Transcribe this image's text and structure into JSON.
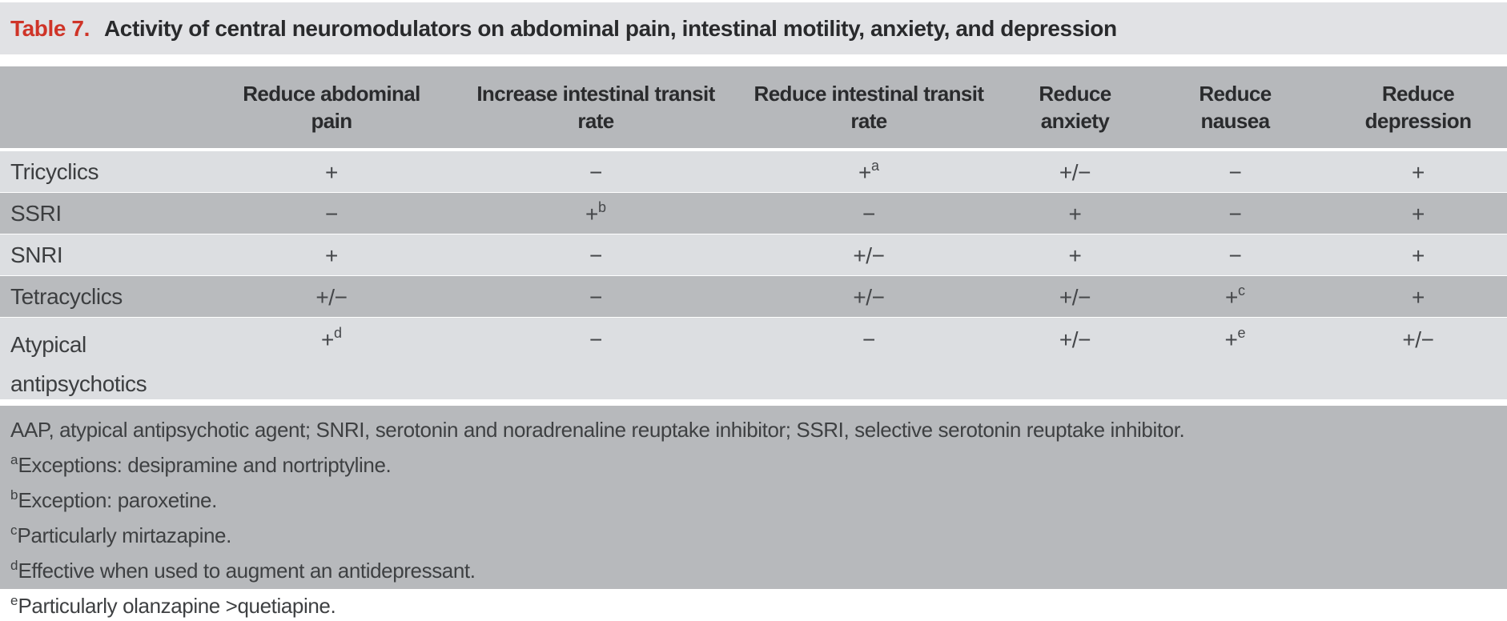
{
  "title": {
    "label": "Table 7.",
    "text": "Activity of central neuromodulators on abdominal pain, intestinal motility, anxiety, and depression"
  },
  "colors": {
    "accent_red": "#cf3428",
    "title_band": "#e1e2e5",
    "header_band": "#b6b8bb",
    "row_light": "#dcdee1",
    "row_dark": "#b9bbbe",
    "footnote_band": "#b7b9bc",
    "text_dark": "#2a2b2d"
  },
  "chart_data": {
    "type": "table",
    "title": "Activity of central neuromodulators on abdominal pain, intestinal motility, anxiety, and depression",
    "columns": [
      "",
      "Reduce abdominal pain",
      "Increase intestinal transit rate",
      "Reduce intestinal transit rate",
      "Reduce anxiety",
      "Reduce nausea",
      "Reduce depression"
    ],
    "rows": [
      [
        "Tricyclics",
        "+",
        "−",
        "+a",
        "+/−",
        "−",
        "+"
      ],
      [
        "SSRI",
        "−",
        "+b",
        "−",
        "+",
        "−",
        "+"
      ],
      [
        "SNRI",
        "+",
        "−",
        "+/−",
        "+",
        "−",
        "+"
      ],
      [
        "Tetracyclics",
        "+/−",
        "−",
        "+/−",
        "+/−",
        "+c",
        "+"
      ],
      [
        "Atypical antipsychotics",
        "+d",
        "−",
        "−",
        "+/−",
        "+e",
        "+/−"
      ]
    ]
  },
  "table": {
    "headers": [
      {
        "line1": "Reduce abdominal",
        "line2": "pain"
      },
      {
        "line1": "Increase intestinal transit",
        "line2": "rate"
      },
      {
        "line1": "Reduce intestinal transit",
        "line2": "rate"
      },
      {
        "line1": "Reduce",
        "line2": "anxiety"
      },
      {
        "line1": "Reduce",
        "line2": "nausea"
      },
      {
        "line1": "Reduce",
        "line2": "depression"
      }
    ],
    "rows": [
      {
        "label": "Tricyclics",
        "cells": [
          {
            "v": "+",
            "sup": ""
          },
          {
            "v": "−",
            "sup": ""
          },
          {
            "v": "+",
            "sup": "a"
          },
          {
            "v": "+/−",
            "sup": ""
          },
          {
            "v": "−",
            "sup": ""
          },
          {
            "v": "+",
            "sup": ""
          }
        ]
      },
      {
        "label": "SSRI",
        "cells": [
          {
            "v": "−",
            "sup": ""
          },
          {
            "v": "+",
            "sup": "b"
          },
          {
            "v": "−",
            "sup": ""
          },
          {
            "v": "+",
            "sup": ""
          },
          {
            "v": "−",
            "sup": ""
          },
          {
            "v": "+",
            "sup": ""
          }
        ]
      },
      {
        "label": "SNRI",
        "cells": [
          {
            "v": "+",
            "sup": ""
          },
          {
            "v": "−",
            "sup": ""
          },
          {
            "v": "+/−",
            "sup": ""
          },
          {
            "v": "+",
            "sup": ""
          },
          {
            "v": "−",
            "sup": ""
          },
          {
            "v": "+",
            "sup": ""
          }
        ]
      },
      {
        "label": "Tetracyclics",
        "cells": [
          {
            "v": "+/−",
            "sup": ""
          },
          {
            "v": "−",
            "sup": ""
          },
          {
            "v": "+/−",
            "sup": ""
          },
          {
            "v": "+/−",
            "sup": ""
          },
          {
            "v": "+",
            "sup": "c"
          },
          {
            "v": "+",
            "sup": ""
          }
        ]
      },
      {
        "label": "Atypical antipsychotics",
        "cells": [
          {
            "v": "+",
            "sup": "d"
          },
          {
            "v": "−",
            "sup": ""
          },
          {
            "v": "−",
            "sup": ""
          },
          {
            "v": "+/−",
            "sup": ""
          },
          {
            "v": "+",
            "sup": "e"
          },
          {
            "v": "+/−",
            "sup": ""
          }
        ]
      }
    ]
  },
  "footnotes": [
    {
      "sup": "",
      "text": "AAP, atypical antipsychotic agent; SNRI, serotonin and noradrenaline reuptake inhibitor; SSRI, selective serotonin reuptake inhibitor."
    },
    {
      "sup": "a",
      "text": "Exceptions: desipramine and nortriptyline."
    },
    {
      "sup": "b",
      "text": "Exception: paroxetine."
    },
    {
      "sup": "c",
      "text": "Particularly mirtazapine."
    },
    {
      "sup": "d",
      "text": "Effective when used to augment an antidepressant."
    },
    {
      "sup": "e",
      "text": "Particularly olanzapine >quetiapine."
    }
  ]
}
